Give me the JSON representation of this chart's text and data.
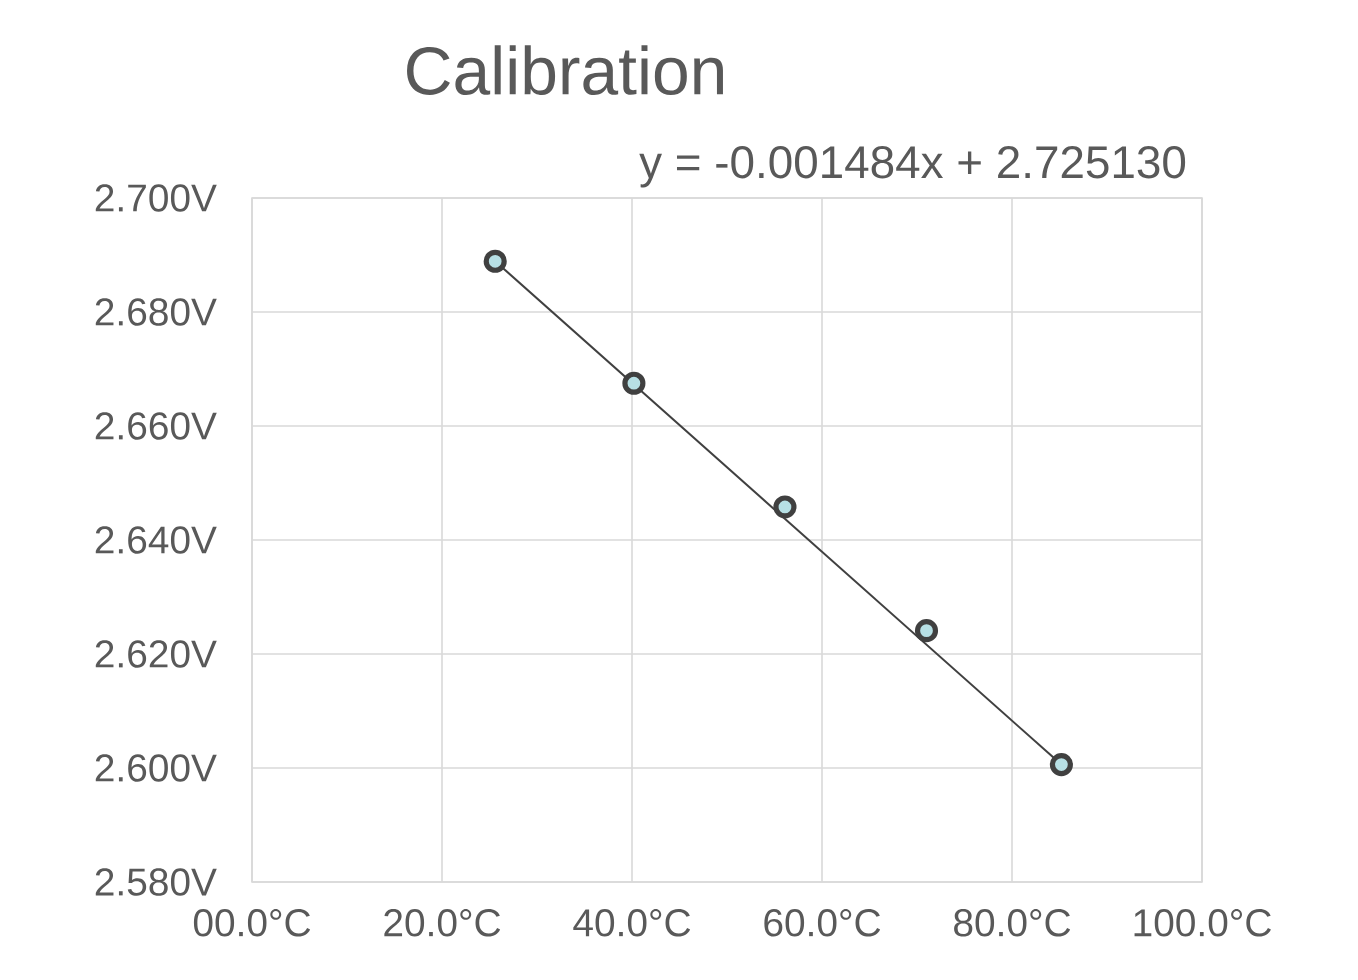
{
  "chart_data": {
    "type": "scatter",
    "title": "Calibration",
    "annotations": [
      "y = -0.001484x + 2.725130"
    ],
    "series": [
      {
        "type": "line",
        "color": "#404040",
        "x": [
          25.6,
          85.2
        ],
        "values": [
          2.6889,
          2.6006
        ],
        "marker": "none"
      },
      {
        "color": "#b7e0e5",
        "marker": "circle",
        "x": [
          25.6,
          40.2,
          56.1,
          71.0,
          85.2
        ],
        "values": [
          2.6889,
          2.6675,
          2.6458,
          2.6241,
          2.6006
        ]
      }
    ],
    "xlim": [
      0,
      100
    ],
    "ylim": [
      2.58,
      2.7
    ],
    "xticks": [
      {
        "value": 0,
        "label": "00.0°C"
      },
      {
        "value": 20,
        "label": "20.0°C"
      },
      {
        "value": 40,
        "label": "40.0°C"
      },
      {
        "value": 60,
        "label": "60.0°C"
      },
      {
        "value": 80,
        "label": "80.0°C"
      },
      {
        "value": 100,
        "label": "100.0°C"
      }
    ],
    "yticks": [
      {
        "value": 2.58,
        "label": "2.580V"
      },
      {
        "value": 2.6,
        "label": "2.600V"
      },
      {
        "value": 2.62,
        "label": "2.620V"
      },
      {
        "value": 2.64,
        "label": "2.640V"
      },
      {
        "value": 2.66,
        "label": "2.660V"
      },
      {
        "value": 2.68,
        "label": "2.680V"
      },
      {
        "value": 2.7,
        "label": "2.700V"
      }
    ],
    "grid": true
  }
}
